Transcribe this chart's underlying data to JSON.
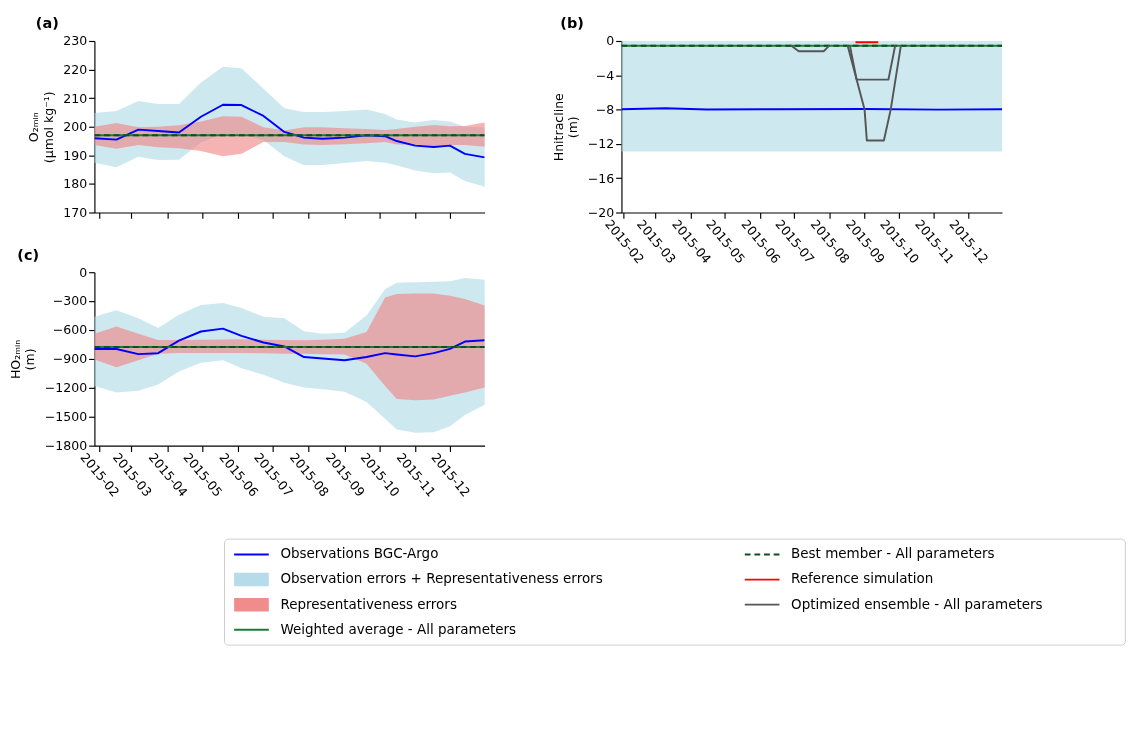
{
  "chart_data": [
    {
      "type": "line",
      "title": "(a)",
      "ylabel": "O₂ₘᵢₙ\n(µmol kg⁻¹)",
      "legend": "bottom",
      "tick_labels": "y",
      "xlim": [
        "2015-01-28",
        "2015-12-31"
      ],
      "xticks": [
        "2015-02",
        "2015-03",
        "2015-04",
        "2015-05",
        "2015-06",
        "2015-07",
        "2015-08",
        "2015-09",
        "2015-10",
        "2015-11",
        "2015-12"
      ],
      "ylim": [
        170,
        230
      ],
      "yticks": [
        170,
        180,
        190,
        200,
        210,
        220,
        230
      ],
      "x": [
        "2015-01-28",
        "2015-02-16",
        "2015-03-07",
        "2015-03-24",
        "2015-04-11",
        "2015-04-30",
        "2015-05-19",
        "2015-06-04",
        "2015-06-23",
        "2015-07-11",
        "2015-07-28",
        "2015-08-13",
        "2015-09-01",
        "2015-09-20",
        "2015-10-06",
        "2015-10-16",
        "2015-11-01",
        "2015-11-17",
        "2015-12-01",
        "2015-12-14",
        "2015-12-31"
      ],
      "series": [
        {
          "name": "Observations BGC-Argo",
          "color": "#0000ff",
          "values": [
            196.0,
            195.5,
            199.0,
            198.5,
            198.0,
            203.5,
            207.7,
            207.6,
            203.8,
            198.2,
            196.2,
            195.8,
            196.2,
            197.0,
            196.7,
            195.0,
            193.4,
            192.9,
            193.4,
            190.5,
            189.3
          ]
        },
        {
          "name": "Observation errors + Representativeness errors",
          "type": "area",
          "color": "#add8e6",
          "values": [
            null,
            null,
            null,
            null,
            null,
            null,
            null,
            null,
            null,
            null,
            null,
            null,
            null,
            null,
            null,
            null,
            null,
            null,
            null,
            null,
            null
          ],
          "upper": [
            204.8,
            205.5,
            209.0,
            208.0,
            208.0,
            215.5,
            221.0,
            220.5,
            213.3,
            206.5,
            205.2,
            205.2,
            205.5,
            206.0,
            204.5,
            202.5,
            201.5,
            202.4,
            201.8,
            200.0,
            199.8
          ],
          "lower": [
            187.4,
            185.8,
            189.5,
            188.4,
            188.5,
            194.5,
            197.5,
            197.5,
            195.3,
            189.7,
            186.5,
            186.6,
            187.3,
            188.0,
            187.4,
            186.5,
            184.7,
            183.7,
            184.0,
            181.0,
            179.0
          ]
        },
        {
          "name": "Representativeness errors",
          "type": "area",
          "color": "#f08080",
          "values": [
            null,
            null,
            null,
            null,
            null,
            null,
            null,
            null,
            null,
            null,
            null,
            null,
            null,
            null,
            null,
            null,
            null,
            null,
            null,
            null,
            null
          ],
          "upper": [
            200.0,
            201.3,
            199.8,
            200.0,
            200.5,
            201.8,
            203.7,
            203.5,
            199.8,
            198.7,
            199.8,
            199.8,
            199.5,
            199.2,
            198.9,
            199.2,
            200.0,
            200.6,
            200.2,
            200.3,
            201.5
          ],
          "lower": [
            193.6,
            192.3,
            193.6,
            192.8,
            192.5,
            191.5,
            189.7,
            190.6,
            194.7,
            194.7,
            193.8,
            193.6,
            193.9,
            194.2,
            194.7,
            193.8,
            193.6,
            193.3,
            193.6,
            193.6,
            193.0
          ]
        },
        {
          "name": "Weighted average - All parameters",
          "color": "#1e7b34",
          "x": [
            "2015-01-28",
            "2015-12-31"
          ],
          "values": [
            197.0,
            197.0
          ]
        },
        {
          "name": "Best member - All parameters",
          "line_style": "dashed",
          "color": "#0f4f1f",
          "x": [
            "2015-01-28",
            "2015-12-31"
          ],
          "values": [
            197.0,
            197.0
          ]
        }
      ]
    },
    {
      "type": "line",
      "title": "(b)",
      "ylabel": "Hnitracline\n(m)",
      "legend": "bottom",
      "xlim": [
        "2015-01-30",
        "2015-12-31"
      ],
      "xticks": [
        "2015-02",
        "2015-03",
        "2015-04",
        "2015-05",
        "2015-06",
        "2015-07",
        "2015-08",
        "2015-09",
        "2015-10",
        "2015-11",
        "2015-12"
      ],
      "ylim": [
        -20,
        0
      ],
      "yticks": [
        -20,
        -16,
        -12,
        -8,
        -4,
        0
      ],
      "x": [
        "2015-01-30",
        "2015-03-10",
        "2015-04-15",
        "2015-06-15",
        "2015-09-01",
        "2015-11-05",
        "2015-12-31"
      ],
      "series": [
        {
          "color": "#0000ff",
          "values": [
            -7.95,
            -7.85,
            -7.98,
            -7.95,
            -7.92,
            -8.0,
            -7.95
          ]
        },
        {
          "type": "area",
          "color": "#add8e6",
          "values": [
            null,
            null,
            null,
            null,
            null,
            null,
            null
          ],
          "upper": [
            0,
            0,
            0,
            0,
            0,
            0,
            0
          ],
          "lower": [
            -12.9,
            -12.9,
            -12.9,
            -12.9,
            -12.9,
            -12.9,
            -12.9
          ]
        },
        {
          "name": "Reference simulation",
          "color": "#ff0000",
          "x": [
            "2015-08-24",
            "2015-09-13"
          ],
          "values": [
            -0.15,
            -0.15
          ]
        },
        {
          "color": "#1e7b34",
          "x": [
            "2015-01-30",
            "2015-12-31"
          ],
          "values": [
            -0.55,
            -0.55
          ]
        },
        {
          "line_style": "dashed",
          "color": "#0f4f1f",
          "x": [
            "2015-01-30",
            "2015-12-31"
          ],
          "values": [
            -0.55,
            -0.55
          ]
        },
        {
          "name": "Optimized ensemble - All parameters",
          "color": "#555555",
          "x": [
            "2015-08-17",
            "2015-09-01",
            "2015-09-03",
            "2015-09-18",
            "2015-09-24",
            "2015-10-03"
          ],
          "values": [
            -0.5,
            -8,
            -11.6,
            -11.6,
            -8,
            -0.5
          ]
        },
        {
          "color": "#555555",
          "x": [
            "2015-06-28",
            "2015-07-05",
            "2015-07-27",
            "2015-08-01"
          ],
          "values": [
            -0.5,
            -1.2,
            -1.2,
            -0.5
          ]
        },
        {
          "color": "#555555",
          "x": [
            "2015-08-19",
            "2015-08-25",
            "2015-09-22",
            "2015-09-28"
          ],
          "values": [
            -0.5,
            -4.5,
            -4.5,
            -0.5
          ]
        }
      ]
    },
    {
      "type": "line",
      "title": "(c)",
      "ylabel": "HO₂ₘᵢₙ\n(m)",
      "legend": "bottom",
      "xlim": [
        "2015-01-28",
        "2015-12-31"
      ],
      "xticks": [
        "2015-02",
        "2015-03",
        "2015-04",
        "2015-05",
        "2015-06",
        "2015-07",
        "2015-08",
        "2015-09",
        "2015-10",
        "2015-11",
        "2015-12"
      ],
      "ylim": [
        -1800,
        0
      ],
      "yticks": [
        -1800,
        -1500,
        -1200,
        -900,
        -600,
        -300,
        0
      ],
      "x": [
        "2015-01-28",
        "2015-02-16",
        "2015-03-07",
        "2015-03-24",
        "2015-04-11",
        "2015-04-30",
        "2015-05-19",
        "2015-06-04",
        "2015-06-23",
        "2015-07-11",
        "2015-07-28",
        "2015-08-13",
        "2015-09-01",
        "2015-09-20",
        "2015-10-06",
        "2015-10-16",
        "2015-11-01",
        "2015-11-17",
        "2015-12-01",
        "2015-12-14",
        "2015-12-31"
      ],
      "series": [
        {
          "color": "#0000ff",
          "values": [
            -796,
            -796,
            -850,
            -840,
            -710,
            -615,
            -585,
            -660,
            -729,
            -770,
            -880,
            -896,
            -913,
            -880,
            -839,
            -853,
            -873,
            -839,
            -796,
            -719,
            -706
          ]
        },
        {
          "type": "area",
          "color": "#add8e6",
          "values": [
            null,
            null,
            null,
            null,
            null,
            null,
            null,
            null,
            null,
            null,
            null,
            null,
            null,
            null,
            null,
            null,
            null,
            null,
            null,
            null,
            null
          ],
          "upper": [
            -462,
            -395,
            -478,
            -579,
            -440,
            -340,
            -318,
            -370,
            -462,
            -478,
            -612,
            -639,
            -629,
            -450,
            -177,
            -110,
            -104,
            -98,
            -94,
            -60,
            -77
          ],
          "lower": [
            -1181,
            -1248,
            -1231,
            -1164,
            -1030,
            -940,
            -913,
            -997,
            -1064,
            -1147,
            -1197,
            -1214,
            -1241,
            -1348,
            -1520,
            -1632,
            -1666,
            -1660,
            -1599,
            -1482,
            -1375
          ]
        },
        {
          "type": "area",
          "color": "#f08080",
          "values": [
            null,
            null,
            null,
            null,
            null,
            null,
            null,
            null,
            null,
            null,
            null,
            null,
            null,
            null,
            null,
            null,
            null,
            null,
            null,
            null,
            null
          ],
          "upper": [
            -639,
            -562,
            -639,
            -702,
            -702,
            -700,
            -698,
            -696,
            -700,
            -704,
            -706,
            -700,
            -690,
            -620,
            -261,
            -227,
            -220,
            -220,
            -244,
            -278,
            -344
          ],
          "lower": [
            -906,
            -987,
            -913,
            -846,
            -839,
            -839,
            -839,
            -839,
            -842,
            -845,
            -846,
            -850,
            -853,
            -950,
            -1181,
            -1315,
            -1328,
            -1320,
            -1281,
            -1248,
            -1197
          ]
        },
        {
          "color": "#1e7b34",
          "x": [
            "2015-01-28",
            "2015-12-31"
          ],
          "values": [
            -775,
            -775
          ]
        },
        {
          "line_style": "dashed",
          "color": "#0f4f1f",
          "x": [
            "2015-01-28",
            "2015-12-31"
          ],
          "values": [
            -775,
            -775
          ]
        }
      ]
    }
  ]
}
